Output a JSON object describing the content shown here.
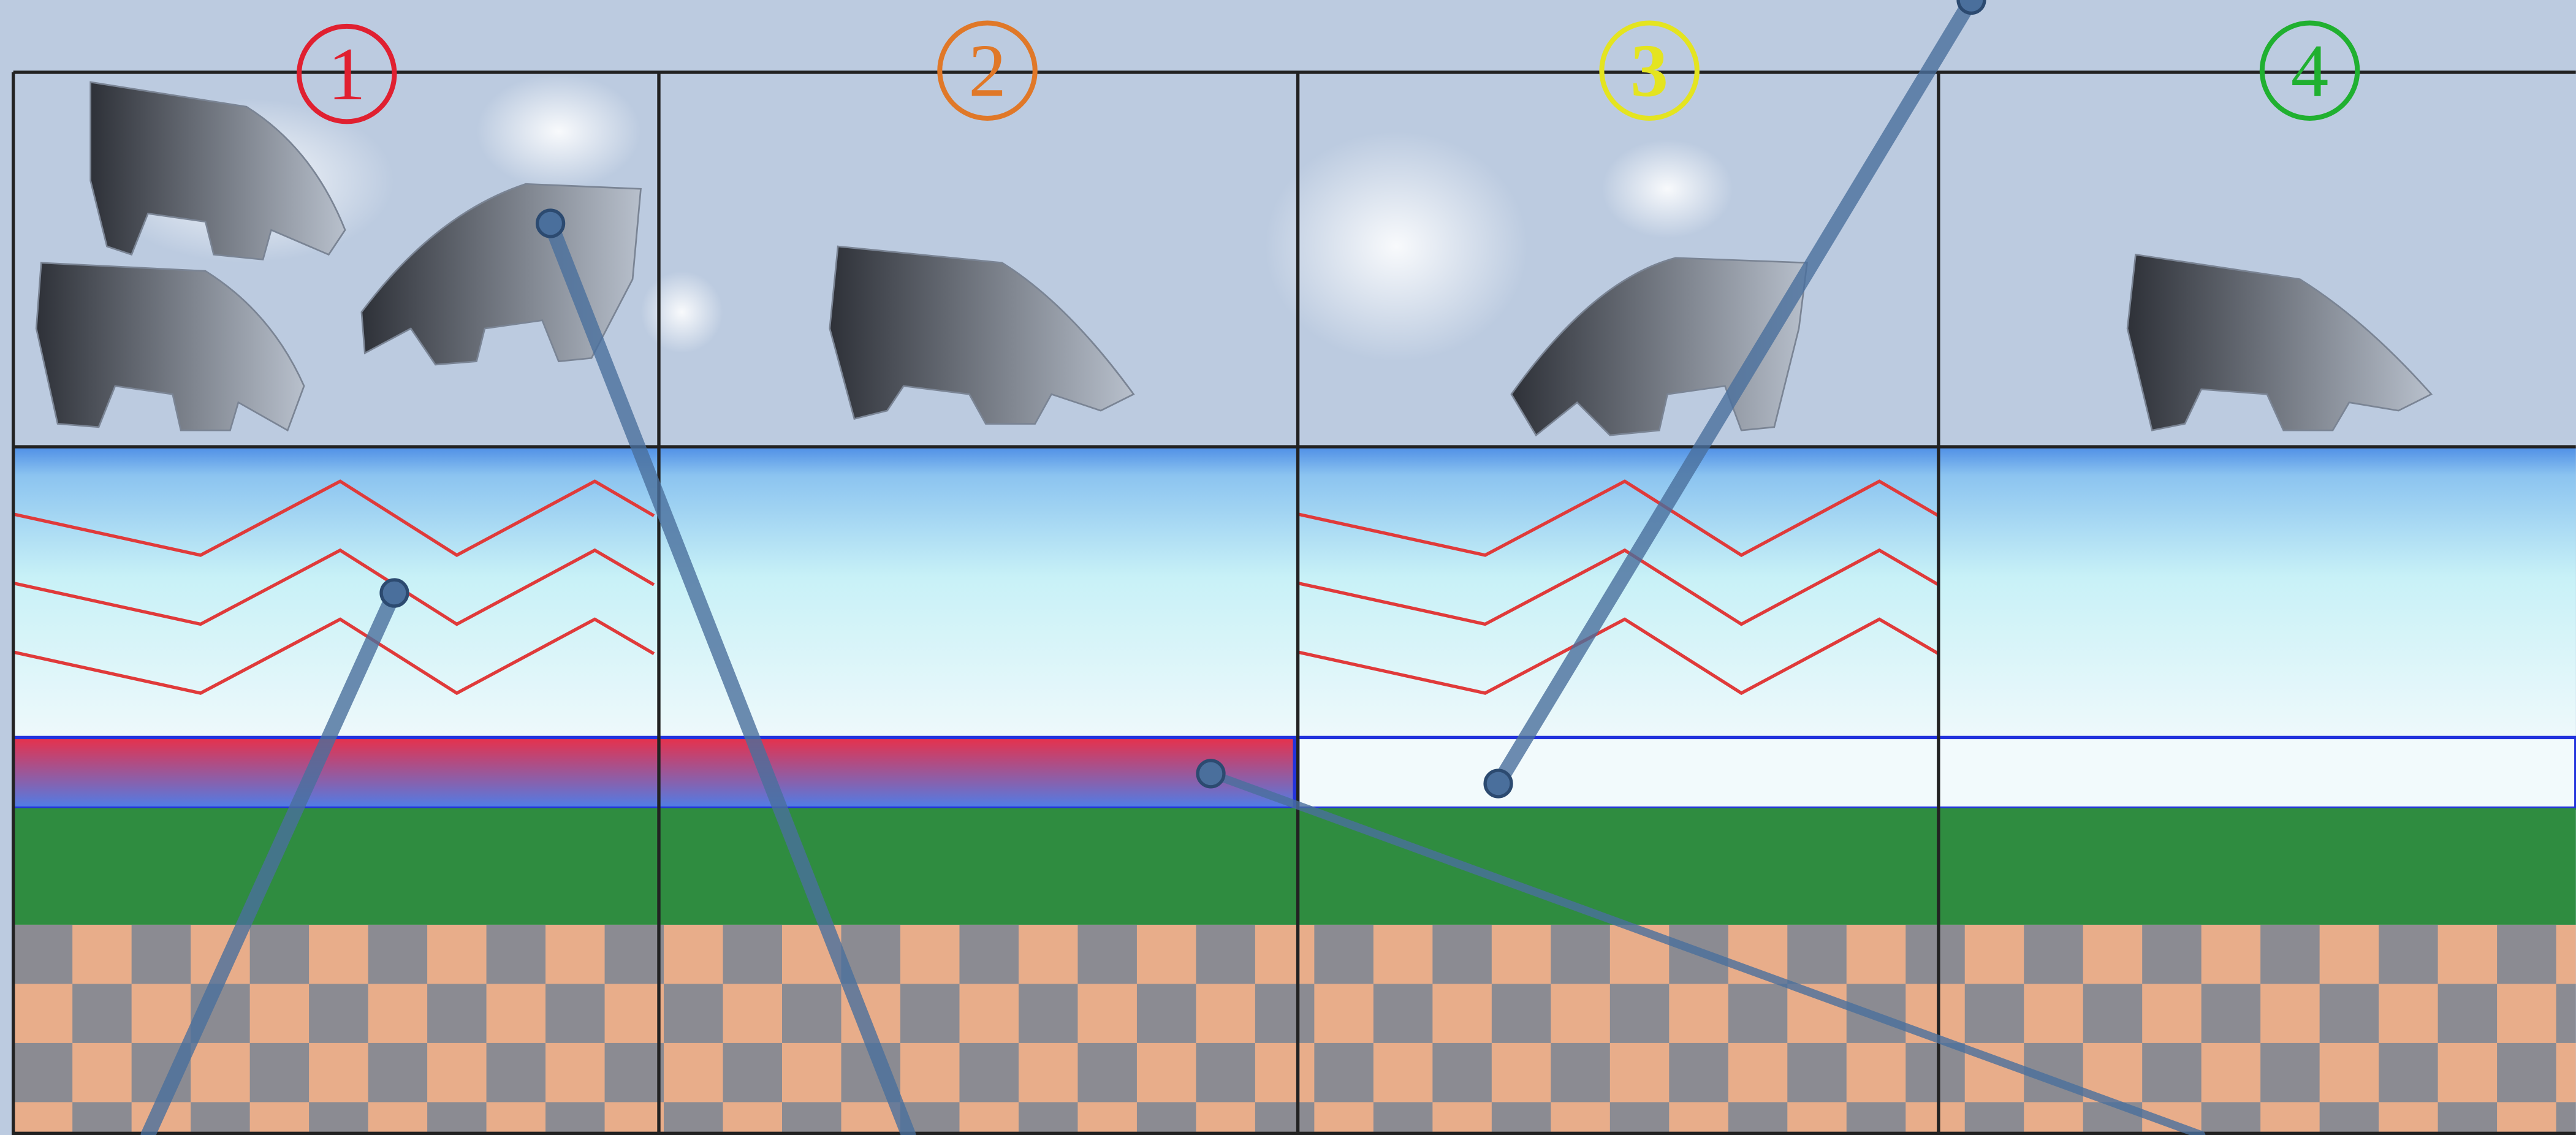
{
  "labels": [
    "1",
    "2",
    "3",
    "4"
  ]
}
